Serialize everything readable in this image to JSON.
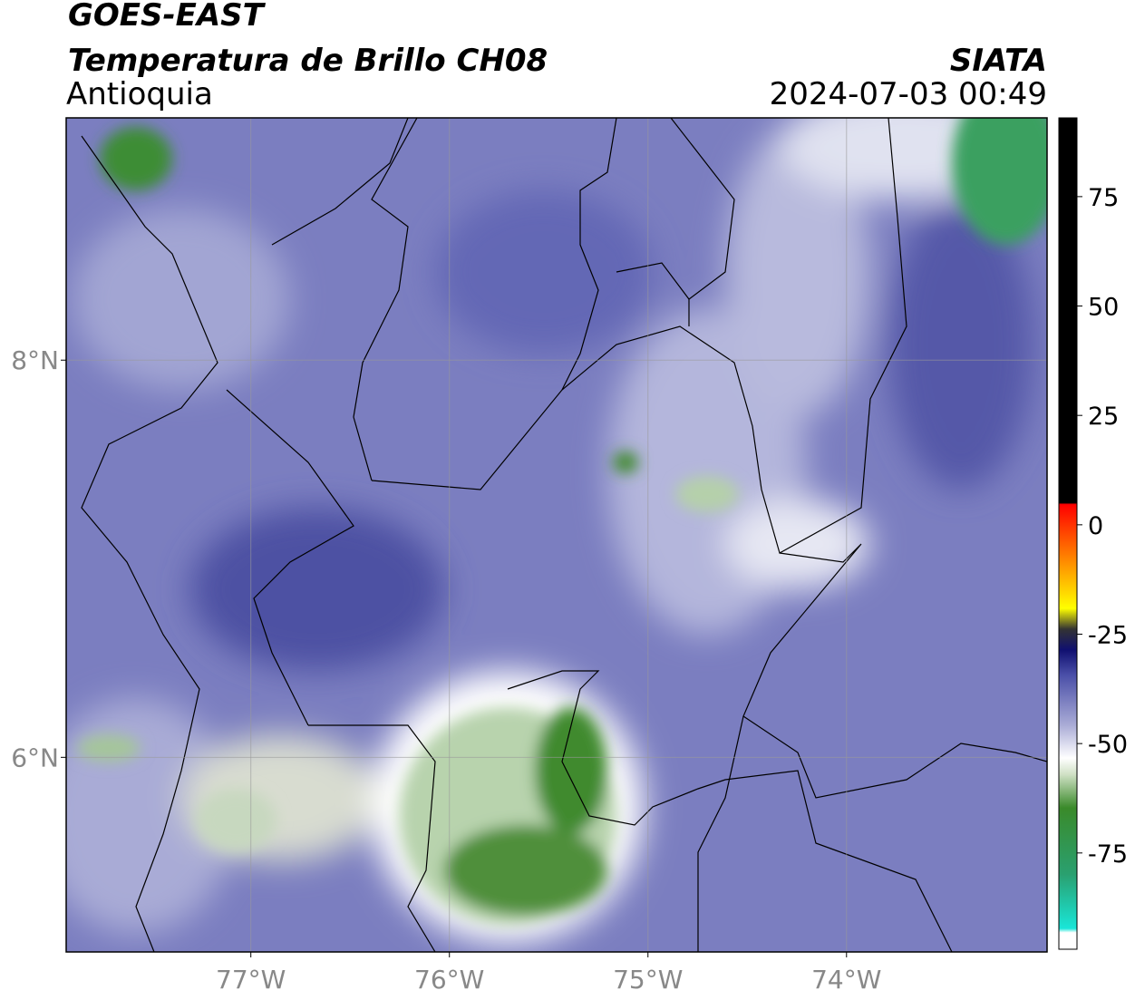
{
  "header": {
    "title": "GOES-EAST",
    "subtitle": "Temperatura de Brillo CH08",
    "region": "Antioquia",
    "source": "SIATA",
    "datetime": "2024-07-03 00:49"
  },
  "map": {
    "lon_lim": [
      -77.93,
      -72.99
    ],
    "lat_lim": [
      5.02,
      9.22
    ],
    "lon_ticks": [
      {
        "value": -77,
        "label": "77°W"
      },
      {
        "value": -76,
        "label": "76°W"
      },
      {
        "value": -75,
        "label": "75°W"
      },
      {
        "value": -74,
        "label": "74°W"
      }
    ],
    "lat_ticks": [
      {
        "value": 8,
        "label": "8°N"
      },
      {
        "value": 6,
        "label": "6°N"
      }
    ],
    "grid": true
  },
  "colorbar": {
    "lim": [
      -97,
      93
    ],
    "ticks": [
      75,
      50,
      25,
      0,
      -25,
      -50,
      -75
    ]
  }
}
